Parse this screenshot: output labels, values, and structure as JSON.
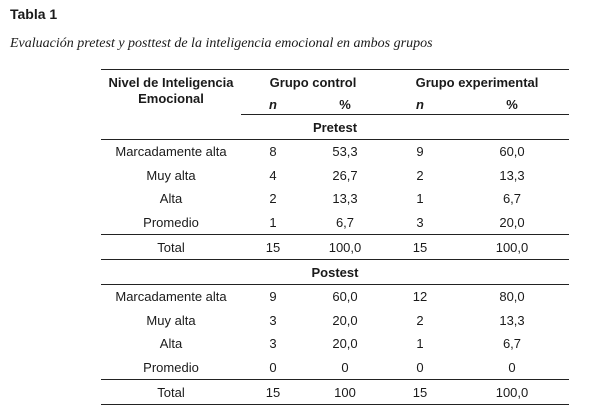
{
  "doc": {
    "table_number": "Tabla 1",
    "table_title": "Evaluación pretest y posttest de la inteligencia emocional en ambos grupos"
  },
  "header": {
    "nivel": "Nivel de Inteligencia Emocional",
    "grupo_control": "Grupo control",
    "grupo_experimental": "Grupo experimental",
    "n": "n",
    "pct": "%"
  },
  "pretest": {
    "label": "Pretest",
    "rows": [
      {
        "nivel": "Marcadamente alta",
        "c_n": "8",
        "c_pct": "53,3",
        "e_n": "9",
        "e_pct": "60,0"
      },
      {
        "nivel": "Muy alta",
        "c_n": "4",
        "c_pct": "26,7",
        "e_n": "2",
        "e_pct": "13,3"
      },
      {
        "nivel": "Alta",
        "c_n": "2",
        "c_pct": "13,3",
        "e_n": "1",
        "e_pct": "6,7"
      },
      {
        "nivel": "Promedio",
        "c_n": "1",
        "c_pct": "6,7",
        "e_n": "3",
        "e_pct": "20,0"
      }
    ],
    "total": {
      "nivel": "Total",
      "c_n": "15",
      "c_pct": "100,0",
      "e_n": "15",
      "e_pct": "100,0"
    }
  },
  "postest": {
    "label": "Postest",
    "rows": [
      {
        "nivel": "Marcadamente alta",
        "c_n": "9",
        "c_pct": "60,0",
        "e_n": "12",
        "e_pct": "80,0"
      },
      {
        "nivel": "Muy alta",
        "c_n": "3",
        "c_pct": "20,0",
        "e_n": "2",
        "e_pct": "13,3"
      },
      {
        "nivel": "Alta",
        "c_n": "3",
        "c_pct": "20,0",
        "e_n": "1",
        "e_pct": "6,7"
      },
      {
        "nivel": "Promedio",
        "c_n": "0",
        "c_pct": "0",
        "e_n": "0",
        "e_pct": "0"
      }
    ],
    "total": {
      "nivel": "Total",
      "c_n": "15",
      "c_pct": "100",
      "e_n": "15",
      "e_pct": "100,0"
    }
  }
}
